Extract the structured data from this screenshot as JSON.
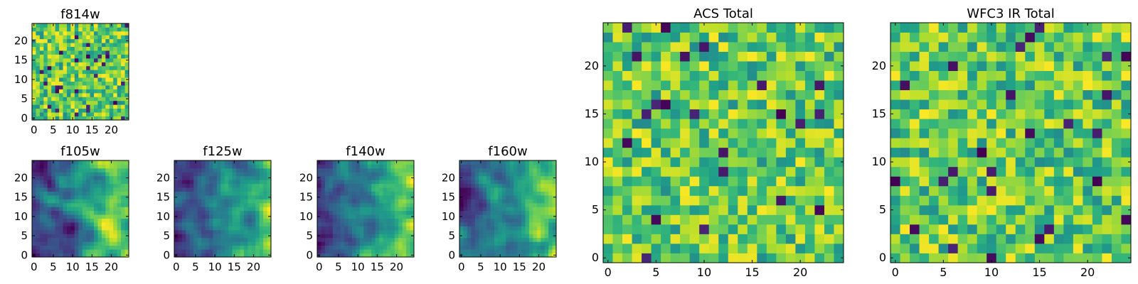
{
  "chart_data": [
    {
      "id": "f814w",
      "type": "heatmap",
      "title": "f814w",
      "x_ticks": [
        "0",
        "5",
        "10",
        "15",
        "20"
      ],
      "y_ticks": [
        "0",
        "5",
        "10",
        "15",
        "20"
      ],
      "xlim": [
        -0.5,
        24.5
      ],
      "ylim": [
        -0.5,
        24.5
      ],
      "grid_size": [
        25,
        25
      ],
      "colormap": "viridis",
      "pattern": "noise",
      "seed": 11
    },
    {
      "id": "f105w",
      "type": "heatmap",
      "title": "f105w",
      "x_ticks": [
        "0",
        "5",
        "10",
        "15",
        "20"
      ],
      "y_ticks": [
        "0",
        "5",
        "10",
        "15",
        "20"
      ],
      "xlim": [
        -0.5,
        24.5
      ],
      "ylim": [
        -0.5,
        24.5
      ],
      "grid_size": [
        25,
        25
      ],
      "colormap": "viridis",
      "pattern": "smooth",
      "seed": 21
    },
    {
      "id": "f125w",
      "type": "heatmap",
      "title": "f125w",
      "x_ticks": [
        "0",
        "5",
        "10",
        "15",
        "20"
      ],
      "y_ticks": [
        "0",
        "5",
        "10",
        "15",
        "20"
      ],
      "xlim": [
        -0.5,
        24.5
      ],
      "ylim": [
        -0.5,
        24.5
      ],
      "grid_size": [
        25,
        25
      ],
      "colormap": "viridis",
      "pattern": "smooth",
      "seed": 31
    },
    {
      "id": "f140w",
      "type": "heatmap",
      "title": "f140w",
      "x_ticks": [
        "0",
        "5",
        "10",
        "15",
        "20"
      ],
      "y_ticks": [
        "0",
        "5",
        "10",
        "15",
        "20"
      ],
      "xlim": [
        -0.5,
        24.5
      ],
      "ylim": [
        -0.5,
        24.5
      ],
      "grid_size": [
        25,
        25
      ],
      "colormap": "viridis",
      "pattern": "smooth",
      "seed": 41
    },
    {
      "id": "f160w",
      "type": "heatmap",
      "title": "f160w",
      "x_ticks": [
        "0",
        "5",
        "10",
        "15",
        "20"
      ],
      "y_ticks": [
        "0",
        "5",
        "10",
        "15",
        "20"
      ],
      "xlim": [
        -0.5,
        24.5
      ],
      "ylim": [
        -0.5,
        24.5
      ],
      "grid_size": [
        25,
        25
      ],
      "colormap": "viridis",
      "pattern": "smooth",
      "seed": 51
    },
    {
      "id": "acs-total",
      "type": "heatmap",
      "title": "ACS Total",
      "x_ticks": [
        "0",
        "5",
        "10",
        "15",
        "20"
      ],
      "y_ticks": [
        "0",
        "5",
        "10",
        "15",
        "20"
      ],
      "xlim": [
        -0.5,
        24.5
      ],
      "ylim": [
        -0.5,
        24.5
      ],
      "grid_size": [
        25,
        25
      ],
      "colormap": "viridis",
      "pattern": "noise",
      "seed": 61
    },
    {
      "id": "wfc3-ir-total",
      "type": "heatmap",
      "title": "WFC3 IR Total",
      "x_ticks": [
        "0",
        "5",
        "10",
        "15",
        "20"
      ],
      "y_ticks": [
        "0",
        "5",
        "10",
        "15",
        "20"
      ],
      "xlim": [
        -0.5,
        24.5
      ],
      "ylim": [
        -0.5,
        24.5
      ],
      "grid_size": [
        25,
        25
      ],
      "colormap": "viridis",
      "pattern": "noise",
      "seed": 71
    }
  ]
}
